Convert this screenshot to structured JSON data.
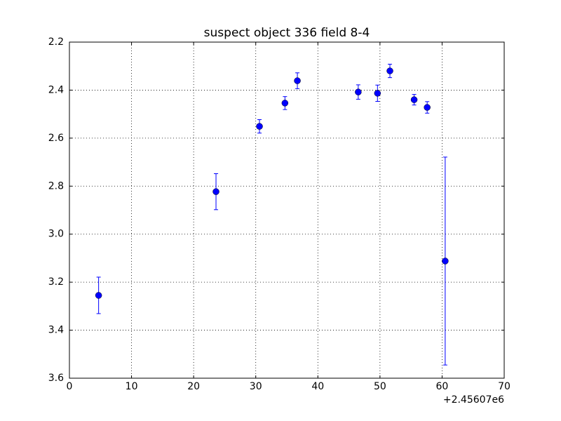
{
  "chart_data": {
    "type": "errorbar",
    "title": "suspect object 336 field 8-4",
    "x_offset_label": "+2.45607e6",
    "x": [
      4.7,
      23.6,
      30.6,
      34.7,
      36.7,
      46.5,
      49.6,
      51.6,
      55.5,
      57.6,
      60.5
    ],
    "series": [
      {
        "color": "#0000ff",
        "values": [
          3.255,
          2.823,
          2.551,
          2.454,
          2.361,
          2.408,
          2.413,
          2.32,
          2.44,
          2.472,
          3.112
        ],
        "errors": [
          0.076,
          0.075,
          0.028,
          0.027,
          0.033,
          0.03,
          0.034,
          0.028,
          0.022,
          0.024,
          0.433
        ]
      }
    ],
    "xlim": [
      0,
      70
    ],
    "xticks": [
      0,
      10,
      20,
      30,
      40,
      50,
      60,
      70
    ],
    "ylim": [
      3.6,
      2.2
    ],
    "yticks": [
      2.2,
      2.4,
      2.6,
      2.8,
      {
        "value": 3,
        "label": "3.0"
      },
      3.2,
      3.4,
      3.6
    ],
    "grid": true
  }
}
